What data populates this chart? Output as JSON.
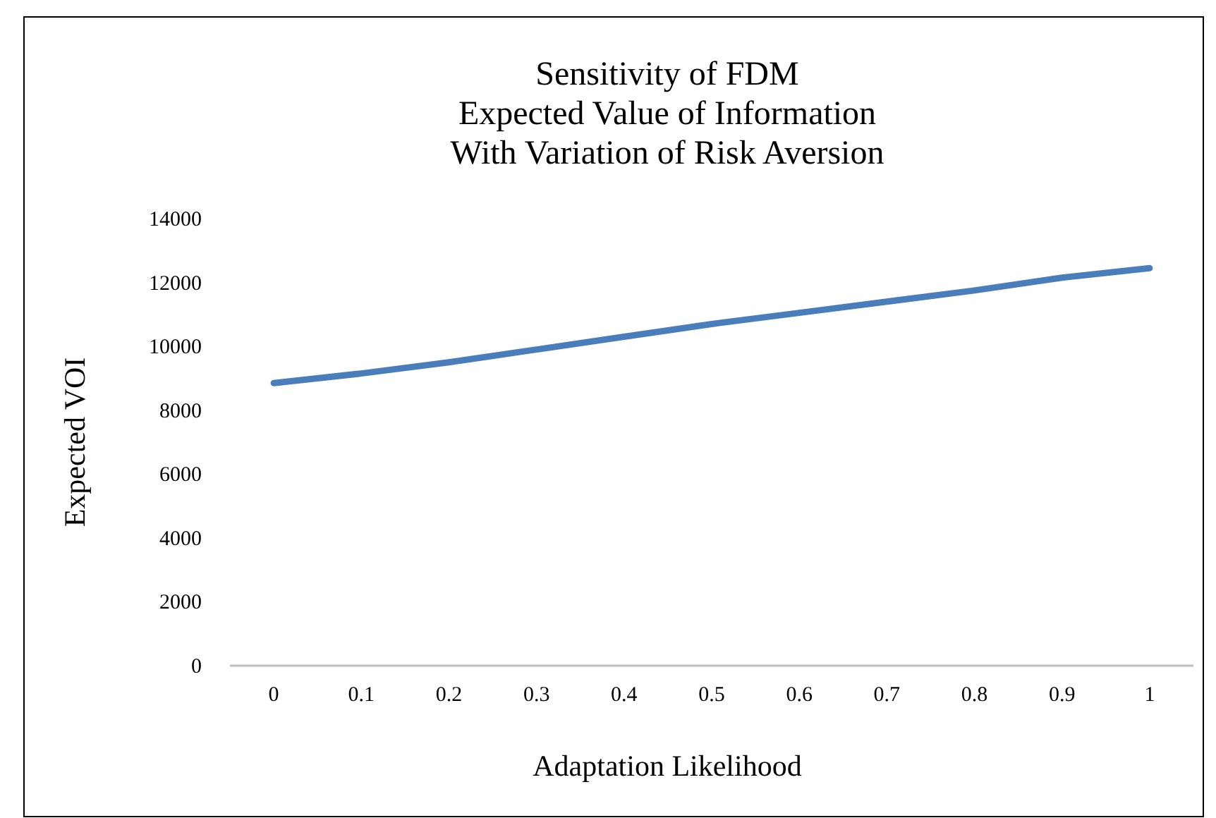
{
  "chart_data": {
    "type": "line",
    "title": "Sensitivity of FDM\nExpected Value of Information\nWith Variation of Risk Aversion",
    "xlabel": "Adaptation Likelihood",
    "ylabel": "Expected VOI",
    "categories": [
      "0",
      "0.1",
      "0.2",
      "0.3",
      "0.4",
      "0.5",
      "0.6",
      "0.7",
      "0.8",
      "0.9",
      "1"
    ],
    "series": [
      {
        "color": "#4a7ebb",
        "values": [
          8850,
          9150,
          9500,
          9900,
          10300,
          10700,
          11050,
          11400,
          11750,
          12150,
          12450
        ]
      }
    ],
    "ylim": [
      0,
      14000
    ],
    "yticks": [
      0,
      2000,
      4000,
      6000,
      8000,
      10000,
      12000,
      14000
    ],
    "grid": false,
    "marker": "none",
    "line_style": "solid"
  }
}
